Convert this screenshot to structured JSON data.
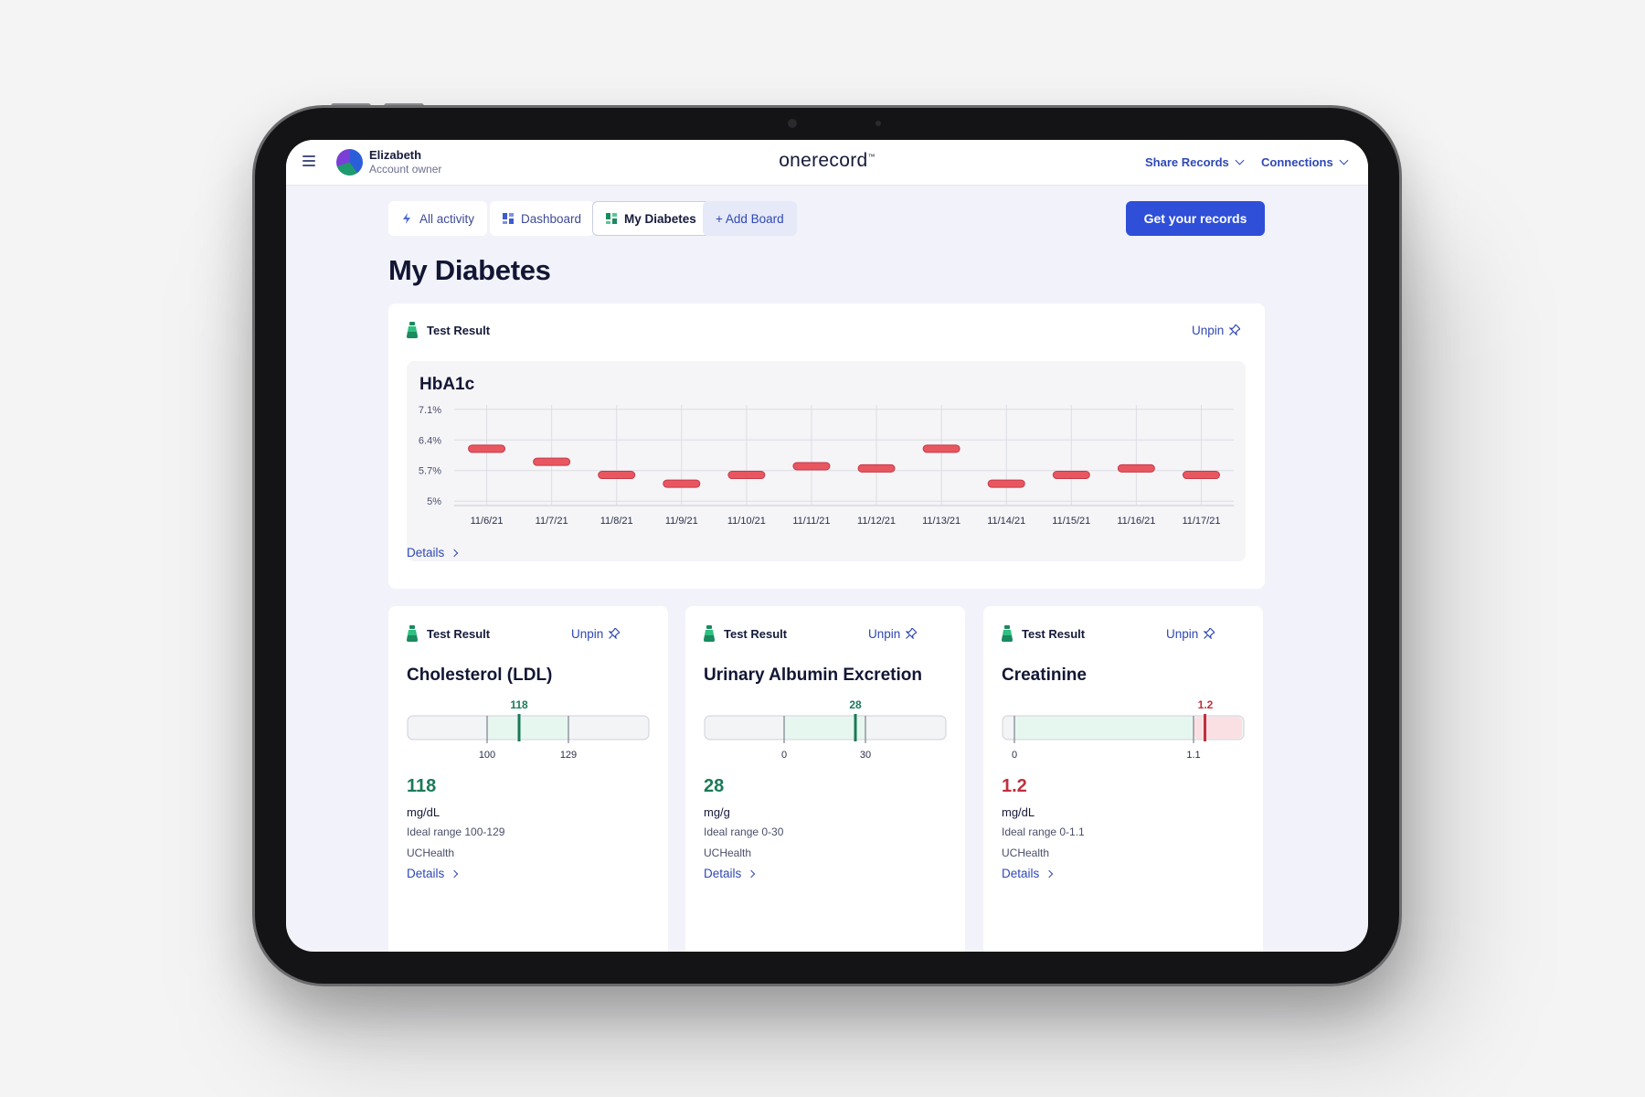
{
  "header": {
    "user_name": "Elizabeth",
    "user_role": "Account owner",
    "logo": "onerecord",
    "logo_mark": "™",
    "share_records": "Share Records",
    "connections": "Connections"
  },
  "tabs": [
    {
      "label": "All activity",
      "icon": "bolt-icon"
    },
    {
      "label": "Dashboard",
      "icon": "dashboard-icon"
    },
    {
      "label": "My Diabetes",
      "icon": "board-icon"
    },
    {
      "label": "+ Add Board"
    }
  ],
  "cta_label": "Get your records",
  "page_title": "My Diabetes",
  "main_card": {
    "label": "Test Result",
    "unpin": "Unpin",
    "details": "Details",
    "chart_title": "HbA1c"
  },
  "chart_data": {
    "type": "scatter",
    "title": "HbA1c",
    "categories": [
      "11/6/21",
      "11/7/21",
      "11/8/21",
      "11/9/21",
      "11/10/21",
      "11/11/21",
      "11/12/21",
      "11/13/21",
      "11/14/21",
      "11/15/21",
      "11/16/21",
      "11/17/21"
    ],
    "values": [
      6.2,
      5.9,
      5.6,
      5.4,
      5.6,
      5.8,
      5.75,
      6.2,
      5.4,
      5.6,
      5.75,
      5.6
    ],
    "yticks": [
      "7.1%",
      "6.4%",
      "5.7%",
      "5%"
    ],
    "ytick_values": [
      7.1,
      6.4,
      5.7,
      5.0
    ],
    "ylim": [
      4.9,
      7.2
    ],
    "grid": true,
    "marker_color": "#e8575f"
  },
  "cards": [
    {
      "label": "Test Result",
      "unpin": "Unpin",
      "title": "Cholesterol (LDL)",
      "value": "118",
      "unit": "mg/dL",
      "range_text": "Ideal range 100-129",
      "source": "UCHealth",
      "details": "Details",
      "marker_label": "118",
      "ticks": [
        "100",
        "129"
      ],
      "status": "normal",
      "color": "#1a7a57"
    },
    {
      "label": "Test Result",
      "unpin": "Unpin",
      "title": "Urinary Albumin Excretion",
      "value": "28",
      "unit": "mg/g",
      "range_text": "Ideal range 0-30",
      "source": "UCHealth",
      "details": "Details",
      "marker_label": "28",
      "ticks": [
        "0",
        "30"
      ],
      "status": "normal",
      "color": "#1a7a57"
    },
    {
      "label": "Test Result",
      "unpin": "Unpin",
      "title": "Creatinine",
      "value": "1.2",
      "unit": "mg/dL",
      "range_text": "Ideal range 0-1.1",
      "source": "UCHealth",
      "details": "Details",
      "marker_label": "1.2",
      "ticks": [
        "0",
        "1.1"
      ],
      "status": "high",
      "color": "#c0303f"
    }
  ]
}
